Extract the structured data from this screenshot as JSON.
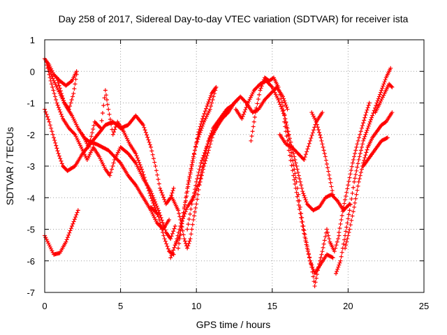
{
  "chart_data": {
    "type": "scatter",
    "title": "Day 258 of 2017, Sidereal Day-to-day VTEC variation (SDTVAR) for receiver ista",
    "xlabel": "GPS time / hours",
    "ylabel": "SDTVAR / TECUs",
    "xlim": [
      0,
      25
    ],
    "ylim": [
      -7,
      1
    ],
    "x_ticks": [
      "0",
      "5",
      "10",
      "15",
      "20",
      "25"
    ],
    "y_ticks": [
      "1",
      "0",
      "-1",
      "-2",
      "-3",
      "-4",
      "-5",
      "-6",
      "-7"
    ],
    "grid": true,
    "legend": "none",
    "marker": "plus",
    "series_color": "#ff0000",
    "traces": [
      {
        "points": [
          [
            0.0,
            -5.2
          ],
          [
            0.3,
            -5.5
          ],
          [
            0.6,
            -5.8
          ],
          [
            1.0,
            -5.75
          ],
          [
            1.4,
            -5.4
          ],
          [
            1.8,
            -4.9
          ],
          [
            2.2,
            -4.4
          ]
        ]
      },
      {
        "points": [
          [
            0.0,
            -1.2
          ],
          [
            0.3,
            -1.6
          ],
          [
            0.6,
            -2.1
          ],
          [
            0.9,
            -2.6
          ],
          [
            1.2,
            -3.0
          ],
          [
            1.5,
            -3.15
          ],
          [
            2.0,
            -3.0
          ],
          [
            2.5,
            -2.6
          ],
          [
            3.0,
            -2.3
          ],
          [
            3.5,
            -2.0
          ],
          [
            4.0,
            -1.7
          ],
          [
            4.5,
            -1.6
          ],
          [
            5.0,
            -1.8
          ],
          [
            5.5,
            -1.7
          ],
          [
            6.0,
            -1.4
          ],
          [
            6.5,
            -1.7
          ],
          [
            7.0,
            -2.4
          ],
          [
            7.3,
            -3.0
          ],
          [
            7.6,
            -3.7
          ],
          [
            8.0,
            -4.2
          ],
          [
            8.3,
            -4.0
          ],
          [
            8.5,
            -3.7
          ]
        ]
      },
      {
        "points": [
          [
            0.1,
            0.3
          ],
          [
            0.4,
            -0.3
          ],
          [
            0.8,
            -1.0
          ],
          [
            1.2,
            -1.5
          ],
          [
            1.6,
            -1.8
          ],
          [
            2.0,
            -2.0
          ],
          [
            2.4,
            -2.4
          ],
          [
            2.8,
            -2.8
          ],
          [
            3.2,
            -2.4
          ],
          [
            3.6,
            -2.7
          ],
          [
            4.0,
            -3.1
          ],
          [
            4.3,
            -3.3
          ],
          [
            4.6,
            -2.8
          ],
          [
            5.0,
            -2.4
          ],
          [
            5.5,
            -2.6
          ],
          [
            6.0,
            -2.9
          ],
          [
            6.5,
            -3.4
          ],
          [
            7.0,
            -3.8
          ],
          [
            7.5,
            -4.4
          ],
          [
            8.0,
            -5.1
          ],
          [
            8.3,
            -5.3
          ],
          [
            8.6,
            -4.9
          ]
        ]
      },
      {
        "points": [
          [
            0.0,
            0.4
          ],
          [
            0.3,
            0.2
          ],
          [
            0.6,
            -0.1
          ],
          [
            1.0,
            -0.3
          ],
          [
            1.4,
            -0.45
          ],
          [
            1.8,
            -0.3
          ],
          [
            2.1,
            0.0
          ]
        ]
      },
      {
        "points": [
          [
            0.2,
            0.2
          ],
          [
            0.6,
            -0.3
          ],
          [
            1.0,
            -0.7
          ],
          [
            1.4,
            -1.1
          ],
          [
            1.8,
            -1.4
          ],
          [
            2.2,
            -1.8
          ],
          [
            2.6,
            -2.1
          ],
          [
            3.0,
            -2.25
          ],
          [
            3.4,
            -2.3
          ],
          [
            3.8,
            -2.4
          ],
          [
            4.2,
            -2.5
          ],
          [
            4.6,
            -2.7
          ],
          [
            5.0,
            -2.9
          ],
          [
            5.5,
            -3.3
          ],
          [
            6.0,
            -3.6
          ],
          [
            6.5,
            -4.0
          ],
          [
            7.0,
            -4.4
          ],
          [
            7.4,
            -4.8
          ],
          [
            7.8,
            -5.0
          ],
          [
            8.2,
            -4.7
          ]
        ]
      },
      {
        "points": [
          [
            0.8,
            -0.2
          ],
          [
            1.1,
            -0.7
          ],
          [
            1.3,
            -1.0
          ],
          [
            1.6,
            -1.2
          ],
          [
            1.9,
            -0.7
          ],
          [
            2.1,
            -0.1
          ]
        ]
      },
      {
        "points": [
          [
            2.5,
            -2.0
          ],
          [
            2.9,
            -2.4
          ],
          [
            3.3,
            -1.6
          ],
          [
            3.7,
            -1.8
          ],
          [
            4.0,
            -0.6
          ],
          [
            4.2,
            -1.2
          ],
          [
            4.5,
            -2.0
          ],
          [
            4.8,
            -1.6
          ],
          [
            5.2,
            -1.9
          ],
          [
            5.6,
            -2.3
          ],
          [
            6.0,
            -2.6
          ],
          [
            6.4,
            -3.1
          ],
          [
            6.8,
            -3.7
          ],
          [
            7.1,
            -4.1
          ],
          [
            7.5,
            -4.6
          ],
          [
            7.9,
            -5.3
          ],
          [
            8.2,
            -5.7
          ],
          [
            8.5,
            -5.8
          ]
        ]
      },
      {
        "points": [
          [
            7.0,
            -4.3
          ],
          [
            7.4,
            -4.5
          ]
        ]
      },
      {
        "points": [
          [
            8.3,
            -5.9
          ],
          [
            8.6,
            -5.5
          ],
          [
            8.9,
            -5.2
          ],
          [
            9.1,
            -4.6
          ],
          [
            9.3,
            -4.1
          ],
          [
            9.5,
            -3.5
          ],
          [
            9.7,
            -3.0
          ],
          [
            9.9,
            -2.5
          ],
          [
            10.1,
            -2.0
          ],
          [
            10.4,
            -1.5
          ],
          [
            10.7,
            -1.1
          ],
          [
            11.0,
            -0.7
          ],
          [
            11.3,
            -0.5
          ],
          [
            10.9,
            -1.2
          ],
          [
            10.5,
            -1.6
          ],
          [
            10.2,
            -2.0
          ],
          [
            10.0,
            -2.3
          ],
          [
            9.8,
            -2.7
          ],
          [
            9.6,
            -3.2
          ],
          [
            9.4,
            -3.7
          ],
          [
            9.2,
            -4.3
          ],
          [
            9.0,
            -5.0
          ],
          [
            8.8,
            -5.6
          ]
        ]
      },
      {
        "points": [
          [
            8.6,
            -5.5
          ],
          [
            9.0,
            -4.8
          ],
          [
            9.4,
            -4.3
          ],
          [
            9.8,
            -4.0
          ],
          [
            10.2,
            -3.5
          ],
          [
            10.5,
            -2.8
          ],
          [
            10.8,
            -2.2
          ],
          [
            11.1,
            -1.8
          ],
          [
            11.4,
            -1.6
          ],
          [
            11.7,
            -1.4
          ],
          [
            12.0,
            -1.2
          ],
          [
            12.3,
            -1.1
          ]
        ]
      },
      {
        "points": [
          [
            8.4,
            -4.0
          ],
          [
            8.6,
            -4.2
          ],
          [
            8.8,
            -4.4
          ],
          [
            9.0,
            -4.8
          ],
          [
            9.2,
            -5.3
          ],
          [
            9.4,
            -5.6
          ],
          [
            9.6,
            -5.3
          ],
          [
            9.8,
            -4.7
          ],
          [
            10.0,
            -4.2
          ],
          [
            10.2,
            -3.6
          ],
          [
            10.5,
            -3.0
          ],
          [
            10.8,
            -2.5
          ],
          [
            11.1,
            -2.0
          ],
          [
            11.5,
            -1.6
          ],
          [
            11.9,
            -1.3
          ],
          [
            12.3,
            -1.1
          ],
          [
            12.7,
            -0.9
          ]
        ]
      },
      {
        "points": [
          [
            9.4,
            -5.0
          ],
          [
            9.7,
            -4.2
          ],
          [
            10.0,
            -3.5
          ],
          [
            10.3,
            -2.9
          ],
          [
            10.6,
            -2.5
          ],
          [
            10.9,
            -2.1
          ],
          [
            11.3,
            -1.8
          ],
          [
            11.7,
            -1.5
          ],
          [
            12.1,
            -1.3
          ],
          [
            12.5,
            -1.0
          ],
          [
            12.9,
            -0.8
          ],
          [
            13.3,
            -1.0
          ],
          [
            13.7,
            -1.3
          ],
          [
            14.1,
            -1.2
          ],
          [
            14.5,
            -0.9
          ],
          [
            14.9,
            -0.7
          ],
          [
            15.3,
            -0.5
          ],
          [
            15.7,
            -0.8
          ],
          [
            16.0,
            -1.2
          ]
        ]
      },
      {
        "points": [
          [
            12.6,
            -1.2
          ],
          [
            13.0,
            -1.5
          ],
          [
            13.4,
            -1.0
          ],
          [
            13.8,
            -0.6
          ],
          [
            14.2,
            -0.4
          ],
          [
            14.6,
            -0.3
          ],
          [
            15.0,
            -0.5
          ],
          [
            15.4,
            -0.9
          ],
          [
            15.8,
            -1.4
          ],
          [
            16.1,
            -2.0
          ],
          [
            16.4,
            -2.6
          ],
          [
            16.7,
            -3.2
          ],
          [
            17.0,
            -3.8
          ],
          [
            17.3,
            -4.2
          ],
          [
            17.7,
            -4.4
          ],
          [
            18.1,
            -4.3
          ],
          [
            18.5,
            -4.0
          ],
          [
            18.9,
            -3.9
          ],
          [
            19.3,
            -4.1
          ],
          [
            19.7,
            -4.4
          ],
          [
            20.1,
            -4.2
          ]
        ]
      },
      {
        "points": [
          [
            13.6,
            -2.2
          ],
          [
            13.9,
            -1.3
          ],
          [
            14.2,
            -0.6
          ],
          [
            14.5,
            -0.2
          ],
          [
            14.8,
            -0.3
          ],
          [
            15.1,
            -0.2
          ],
          [
            15.4,
            -0.5
          ],
          [
            15.7,
            -1.1
          ],
          [
            16.0,
            -1.9
          ],
          [
            16.3,
            -2.7
          ],
          [
            16.6,
            -3.5
          ],
          [
            16.9,
            -4.5
          ],
          [
            17.2,
            -5.3
          ],
          [
            17.5,
            -6.0
          ],
          [
            17.8,
            -6.4
          ],
          [
            18.2,
            -6.1
          ],
          [
            18.6,
            -5.8
          ],
          [
            19.0,
            -5.9
          ]
        ]
      },
      {
        "points": [
          [
            15.8,
            -1.6
          ],
          [
            16.1,
            -2.5
          ],
          [
            16.4,
            -3.3
          ],
          [
            16.7,
            -4.1
          ],
          [
            17.0,
            -4.9
          ],
          [
            17.3,
            -5.6
          ],
          [
            17.6,
            -6.2
          ],
          [
            17.8,
            -6.8
          ],
          [
            18.0,
            -6.3
          ],
          [
            18.3,
            -5.7
          ],
          [
            18.6,
            -5.0
          ],
          [
            18.8,
            -5.4
          ],
          [
            19.1,
            -5.7
          ],
          [
            19.4,
            -5.2
          ]
        ]
      },
      {
        "points": [
          [
            15.5,
            -2.0
          ],
          [
            15.9,
            -2.3
          ],
          [
            16.3,
            -2.4
          ],
          [
            16.7,
            -2.6
          ],
          [
            17.1,
            -2.8
          ],
          [
            17.5,
            -2.2
          ],
          [
            17.9,
            -1.6
          ],
          [
            18.3,
            -1.3
          ]
        ]
      },
      {
        "points": [
          [
            17.6,
            -1.3
          ],
          [
            17.9,
            -1.6
          ],
          [
            18.2,
            -2.1
          ],
          [
            18.5,
            -2.7
          ],
          [
            18.8,
            -3.4
          ],
          [
            19.0,
            -3.9
          ]
        ]
      },
      {
        "points": [
          [
            19.2,
            -6.4
          ],
          [
            19.5,
            -6.0
          ],
          [
            19.8,
            -5.2
          ],
          [
            20.1,
            -4.4
          ],
          [
            20.4,
            -3.5
          ],
          [
            20.7,
            -2.8
          ],
          [
            21.0,
            -2.2
          ],
          [
            21.3,
            -1.8
          ],
          [
            21.6,
            -1.4
          ],
          [
            21.9,
            -1.0
          ],
          [
            22.2,
            -0.6
          ],
          [
            22.5,
            -0.2
          ],
          [
            22.8,
            0.1
          ]
        ]
      },
      {
        "points": [
          [
            19.4,
            -5.1
          ],
          [
            19.7,
            -4.3
          ],
          [
            20.0,
            -3.6
          ],
          [
            20.3,
            -2.9
          ],
          [
            20.6,
            -2.3
          ],
          [
            20.9,
            -1.8
          ],
          [
            21.2,
            -1.3
          ],
          [
            21.4,
            -1.0
          ]
        ]
      },
      {
        "points": [
          [
            19.8,
            -5.6
          ],
          [
            20.1,
            -5.0
          ],
          [
            20.4,
            -4.3
          ],
          [
            20.7,
            -3.5
          ],
          [
            21.0,
            -2.9
          ],
          [
            21.3,
            -2.4
          ],
          [
            21.6,
            -2.1
          ],
          [
            21.9,
            -1.9
          ],
          [
            22.2,
            -1.7
          ],
          [
            22.5,
            -1.6
          ],
          [
            22.9,
            -1.3
          ]
        ]
      },
      {
        "points": [
          [
            21.0,
            -3.0
          ],
          [
            21.3,
            -2.8
          ],
          [
            21.6,
            -2.6
          ],
          [
            21.9,
            -2.4
          ],
          [
            22.2,
            -2.2
          ],
          [
            22.6,
            -2.1
          ]
        ]
      },
      {
        "points": [
          [
            21.8,
            -1.3
          ],
          [
            22.1,
            -1.0
          ],
          [
            22.4,
            -0.7
          ],
          [
            22.7,
            -0.4
          ],
          [
            22.9,
            -0.5
          ]
        ]
      }
    ]
  }
}
